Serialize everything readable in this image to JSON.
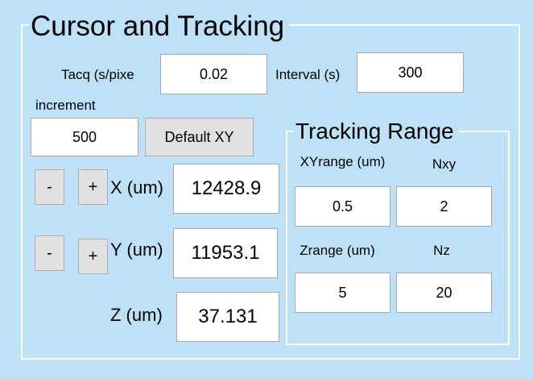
{
  "panel": {
    "title": "Cursor and Tracking"
  },
  "acquisition": {
    "tacq_label": "Tacq (s/pixe",
    "tacq_value": "0.02",
    "interval_label": "Interval (s)",
    "interval_value": "300"
  },
  "increment": {
    "label": "increment",
    "value": "500",
    "default_button": "Default XY"
  },
  "position": {
    "x": {
      "label": "X (um)",
      "value": "12428.9",
      "minus": "-",
      "plus": "+"
    },
    "y": {
      "label": "Y (um)",
      "value": "11953.1",
      "minus": "-",
      "plus": "+"
    },
    "z": {
      "label": "Z (um)",
      "value": "37.131"
    }
  },
  "tracking_range": {
    "title": "Tracking Range",
    "xyrange_label": "XYrange (um)",
    "xyrange_value": "0.5",
    "nxy_label": "Nxy",
    "nxy_value": "2",
    "zrange_label": "Zrange (um)",
    "zrange_value": "5",
    "nz_label": "Nz",
    "nz_value": "20"
  }
}
